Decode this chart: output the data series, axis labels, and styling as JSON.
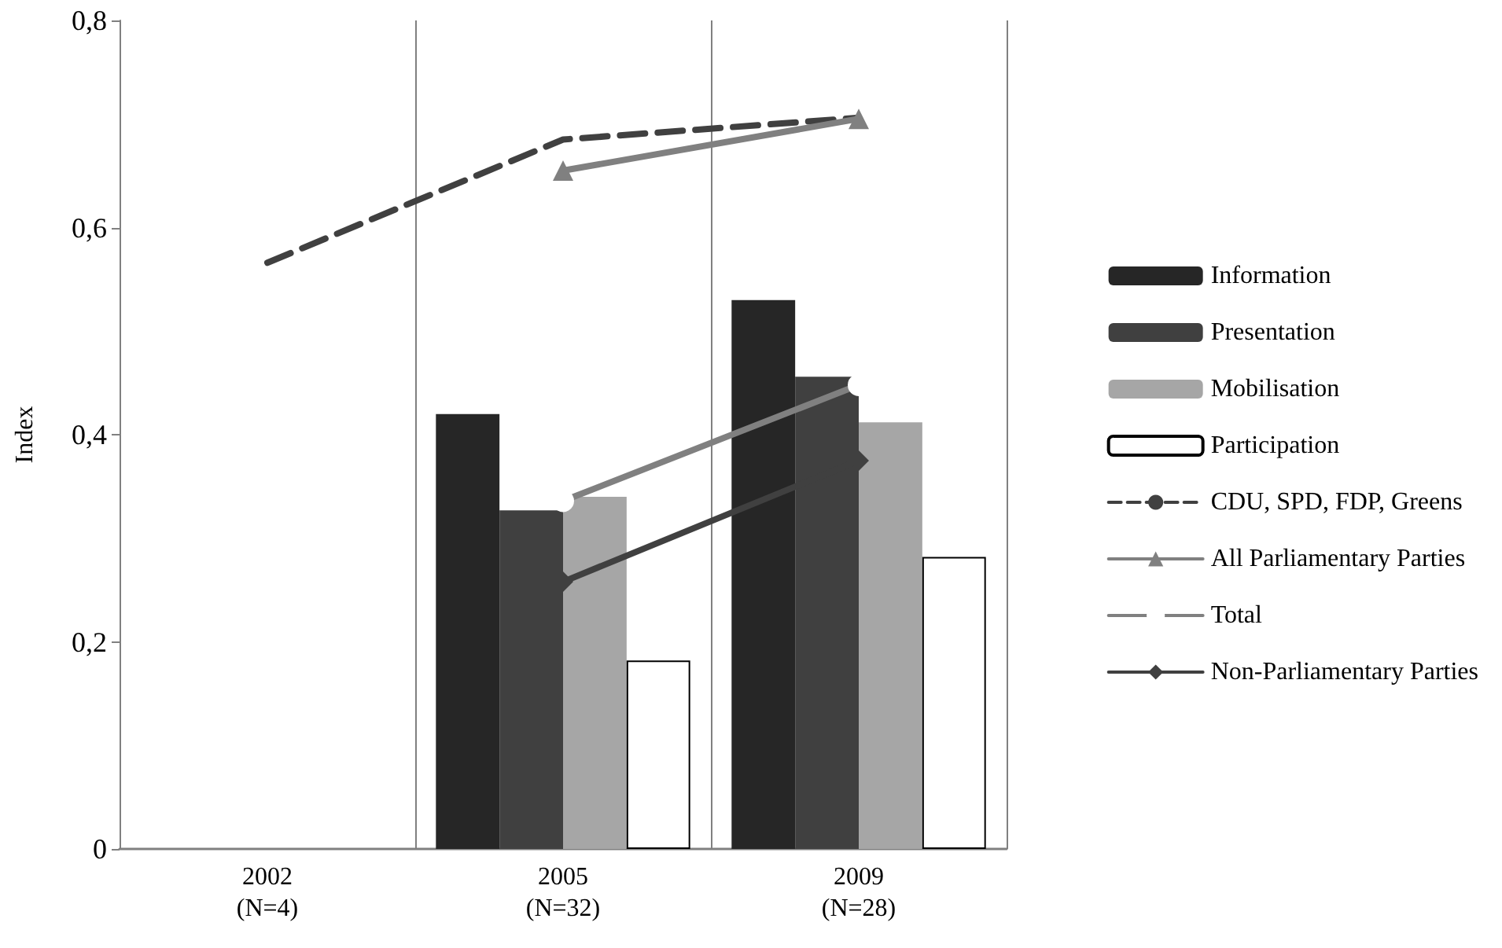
{
  "chart_data": {
    "type": "bar",
    "ylabel": "Index",
    "categories": [
      "2002\n(N=4)",
      "2005\n(N=32)",
      "2009\n(N=28)"
    ],
    "ylim": [
      0,
      0.8
    ],
    "yticks": [
      0,
      {
        "value": 0.2,
        "label": "0,2"
      },
      {
        "value": 0.4,
        "label": "0,4"
      },
      {
        "value": 0.6,
        "label": "0,6"
      },
      {
        "value": 0.8,
        "label": "0,8"
      }
    ],
    "grid": "x",
    "legend": "right",
    "series": [
      {
        "name": "Information",
        "color": "#262626",
        "values": [
          null,
          0.42,
          0.53
        ]
      },
      {
        "name": "Presentation",
        "color": "#404040",
        "values": [
          null,
          0.327,
          0.456
        ]
      },
      {
        "name": "Mobilisation",
        "color": "#a6a6a6",
        "values": [
          null,
          0.34,
          0.412
        ]
      },
      {
        "name": "Participation",
        "color": "#ffffff",
        "values": [
          null,
          0.182,
          0.282
        ]
      },
      {
        "name": "CDU, SPD, FDP, Greens",
        "type": "line",
        "color": "#404040",
        "line_style": "dashed",
        "marker": "none",
        "values": [
          0.566,
          0.685,
          0.706
        ]
      },
      {
        "name": "All Parliamentary Parties",
        "type": "line",
        "color": "#808080",
        "line_style": "solid",
        "marker": "triangle",
        "values": [
          null,
          0.655,
          0.705
        ]
      },
      {
        "name": "Total",
        "type": "line",
        "color": "#808080",
        "line_style": "solid",
        "marker": "circle",
        "values": [
          null,
          0.336,
          0.448
        ]
      },
      {
        "name": "Non-Parliamentary Parties",
        "type": "line",
        "color": "#404040",
        "line_style": "solid",
        "marker": "diamond",
        "values": [
          null,
          0.258,
          0.375
        ]
      }
    ]
  }
}
